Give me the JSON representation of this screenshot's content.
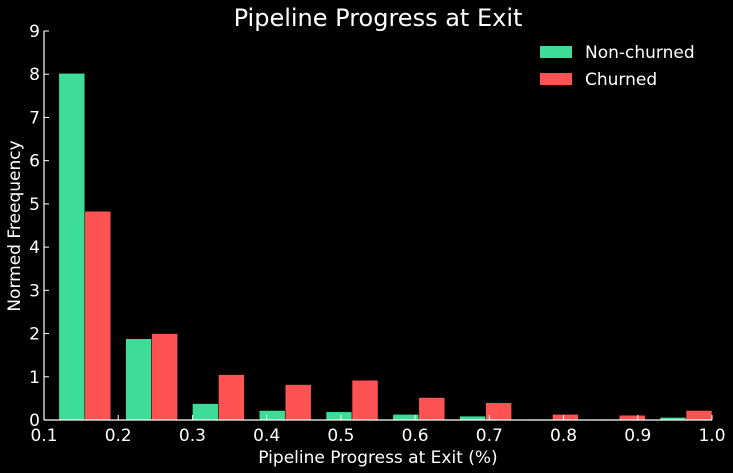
{
  "chart_data": {
    "type": "bar",
    "title": "Pipeline Progress at Exit",
    "xlabel": "Pipeline Progress at Exit (%)",
    "ylabel": "Normed Freequency",
    "xlim": [
      0.1,
      1.0
    ],
    "ylim": [
      0,
      9
    ],
    "xticks": [
      "0.1",
      "0.2",
      "0.3",
      "0.4",
      "0.5",
      "0.6",
      "0.7",
      "0.8",
      "0.9",
      "1.0"
    ],
    "yticks": [
      "0",
      "1",
      "2",
      "3",
      "4",
      "5",
      "6",
      "7",
      "8",
      "9"
    ],
    "bin_starts": [
      0.12,
      0.21,
      0.3,
      0.39,
      0.48,
      0.57,
      0.66,
      0.75,
      0.84,
      0.93
    ],
    "bar_width": 0.035,
    "grid": false,
    "legend_position": "top-right",
    "series": [
      {
        "name": "Non-churned",
        "color": "#3ddc97",
        "values": [
          8.02,
          1.88,
          0.38,
          0.22,
          0.19,
          0.13,
          0.09,
          0.02,
          0.02,
          0.06
        ]
      },
      {
        "name": "Churned",
        "color": "#ff5252",
        "values": [
          4.83,
          2.0,
          1.05,
          0.82,
          0.92,
          0.52,
          0.4,
          0.13,
          0.11,
          0.22
        ]
      }
    ]
  }
}
